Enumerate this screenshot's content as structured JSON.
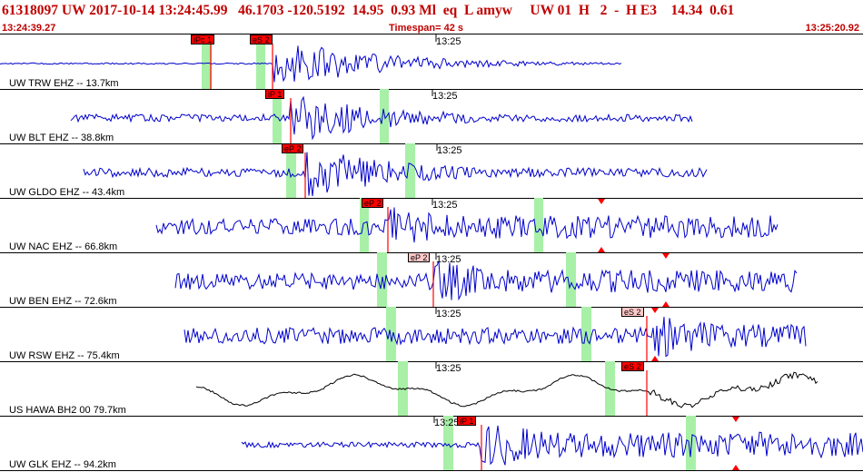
{
  "header": {
    "event_line": "61318097 UW 2017-10-14 13:24:45.99   46.1703 -120.5192  14.95  0.93 Ml  eq  L amyw     UW 01  H   2  -  H E3    14.34  0.61",
    "start_time": "13:24:39.27",
    "timespan": "Timespan=  42 s",
    "end_time": "13:25:20.92"
  },
  "colors": {
    "header_text": "#c00000",
    "trace": "#0000cc",
    "trace_broadband": "#000000",
    "pick_red": "#ff0000",
    "pick_light": "#ffc8c8",
    "window_green": "#a8f0a8",
    "marker": "#ff0000"
  },
  "traces": [
    {
      "label": "UW TRW EHZ -- 13.7km",
      "tick_label": "13:25",
      "picks": [
        {
          "text": "iPc 1",
          "style": "red"
        },
        {
          "text": "eS 2",
          "style": "red"
        }
      ]
    },
    {
      "label": "UW BLT EHZ -- 38.8km",
      "tick_label": "13:25",
      "picks": [
        {
          "text": "iP 1",
          "style": "red"
        }
      ]
    },
    {
      "label": "UW GLDO EHZ -- 43.4km",
      "tick_label": "13:25",
      "picks": [
        {
          "text": "eP 2",
          "style": "red"
        }
      ]
    },
    {
      "label": "UW NAC EHZ -- 66.8km",
      "tick_label": "13:25",
      "picks": [
        {
          "text": "eP 2",
          "style": "red"
        }
      ]
    },
    {
      "label": "UW BEN EHZ -- 72.6km",
      "tick_label": "13:25",
      "picks": [
        {
          "text": "eP 2",
          "style": "light"
        }
      ]
    },
    {
      "label": "UW RSW EHZ -- 75.4km",
      "tick_label": "13:25",
      "picks": [
        {
          "text": "eS 2",
          "style": "light"
        }
      ]
    },
    {
      "label": "US HAWA BH2 00 79.7km",
      "tick_label": "13:25",
      "picks": [
        {
          "text": "eS 2",
          "style": "red"
        }
      ]
    },
    {
      "label": "UW GLK EHZ -- 94.2km",
      "tick_label": "13:25",
      "picks": [
        {
          "text": "iP 1",
          "style": "red"
        }
      ]
    }
  ]
}
